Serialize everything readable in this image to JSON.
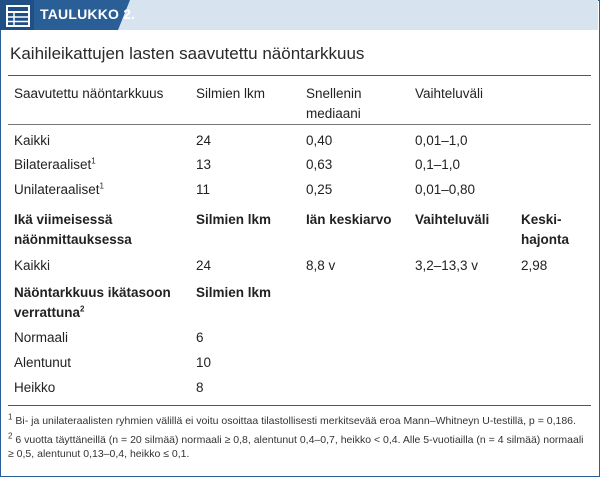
{
  "header": {
    "tab_label": "TAULUKKO 2."
  },
  "title": "Kaihileikattujen lasten saavutettu näöntarkkuus",
  "section1": {
    "columns": [
      "Saavutettu näöntarkkuus",
      "Silmien lkm",
      "Snellenin mediaani",
      "Vaihteluväli"
    ],
    "rows": [
      {
        "label": "Kaikki",
        "sup": "",
        "count": "24",
        "median": "0,40",
        "range": "0,01–1,0"
      },
      {
        "label": "Bilateraaliset",
        "sup": "1",
        "count": "13",
        "median": "0,63",
        "range": "0,1–1,0"
      },
      {
        "label": "Unilateraaliset",
        "sup": "1",
        "count": "11",
        "median": "0,25",
        "range": "0,01–0,80"
      }
    ]
  },
  "section2": {
    "columns": [
      "Ikä viimeisessä näönmittauksessa",
      "Silmien lkm",
      "Iän keskiarvo",
      "Vaihteluväli",
      "Keski-hajonta"
    ],
    "rows": [
      {
        "label": "Kaikki",
        "count": "24",
        "mean": "8,8 v",
        "range": "3,2–13,3 v",
        "sd": "2,98"
      }
    ]
  },
  "section3": {
    "columns": [
      "Näöntarkkuus ikätasoon verrattuna",
      "Silmien lkm"
    ],
    "header_sup": "2",
    "rows": [
      {
        "label": "Normaali",
        "count": "6"
      },
      {
        "label": "Alentunut",
        "count": "10"
      },
      {
        "label": "Heikko",
        "count": "8"
      }
    ]
  },
  "footnotes": [
    {
      "mark": "1",
      "text": "Bi- ja unilateraalisten ryhmien välillä ei voitu osoittaa tilastollisesti merkitsevää eroa Mann–Whitneyn U-testillä, p = 0,186."
    },
    {
      "mark": "2",
      "text": "6 vuotta täyttäneillä (n = 20 silmää) normaali ≥ 0,8, alentunut 0,4–0,7, heikko < 0,4. Alle 5-vuotiailla (n = 4 silmää) normaali ≥ 0,5, alentunut 0,13–0,4, heikko ≤ 0,1."
    }
  ],
  "colors": {
    "accent": "#2a5e97",
    "header_band": "#d7e3ef"
  }
}
